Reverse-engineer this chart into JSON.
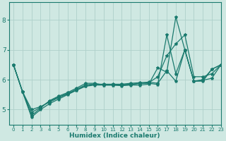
{
  "xlabel": "Humidex (Indice chaleur)",
  "xlim": [
    -0.5,
    23
  ],
  "ylim": [
    4.5,
    8.6
  ],
  "yticks": [
    5,
    6,
    7,
    8
  ],
  "xticks": [
    0,
    1,
    2,
    3,
    4,
    5,
    6,
    7,
    8,
    9,
    10,
    11,
    12,
    13,
    14,
    15,
    16,
    17,
    18,
    19,
    20,
    21,
    22,
    23
  ],
  "bg_color": "#cfe8e2",
  "grid_color": "#aed0ca",
  "line_color": "#1a7a6e",
  "lines": [
    [
      6.5,
      5.6,
      4.75,
      5.0,
      5.2,
      5.35,
      5.5,
      5.65,
      5.8,
      5.85,
      5.85,
      5.85,
      5.85,
      5.88,
      5.9,
      5.92,
      5.88,
      6.3,
      5.95,
      7.0,
      5.95,
      5.98,
      6.05,
      6.5
    ],
    [
      6.5,
      5.6,
      5.0,
      5.1,
      5.25,
      5.4,
      5.52,
      5.65,
      5.78,
      5.82,
      5.82,
      5.82,
      5.82,
      5.84,
      5.88,
      5.88,
      5.84,
      7.5,
      6.2,
      7.0,
      5.95,
      6.0,
      6.35,
      6.5
    ],
    [
      6.5,
      5.6,
      4.8,
      5.05,
      5.3,
      5.45,
      5.57,
      5.72,
      5.88,
      5.88,
      5.82,
      5.82,
      5.8,
      5.82,
      5.82,
      5.85,
      6.4,
      6.25,
      8.1,
      7.0,
      5.95,
      5.95,
      6.35,
      6.5
    ],
    [
      6.5,
      5.6,
      4.9,
      5.08,
      5.28,
      5.42,
      5.54,
      5.68,
      5.83,
      5.85,
      5.83,
      5.83,
      5.83,
      5.85,
      5.87,
      5.9,
      6.1,
      6.8,
      7.2,
      7.5,
      6.1,
      6.1,
      6.2,
      6.5
    ]
  ]
}
